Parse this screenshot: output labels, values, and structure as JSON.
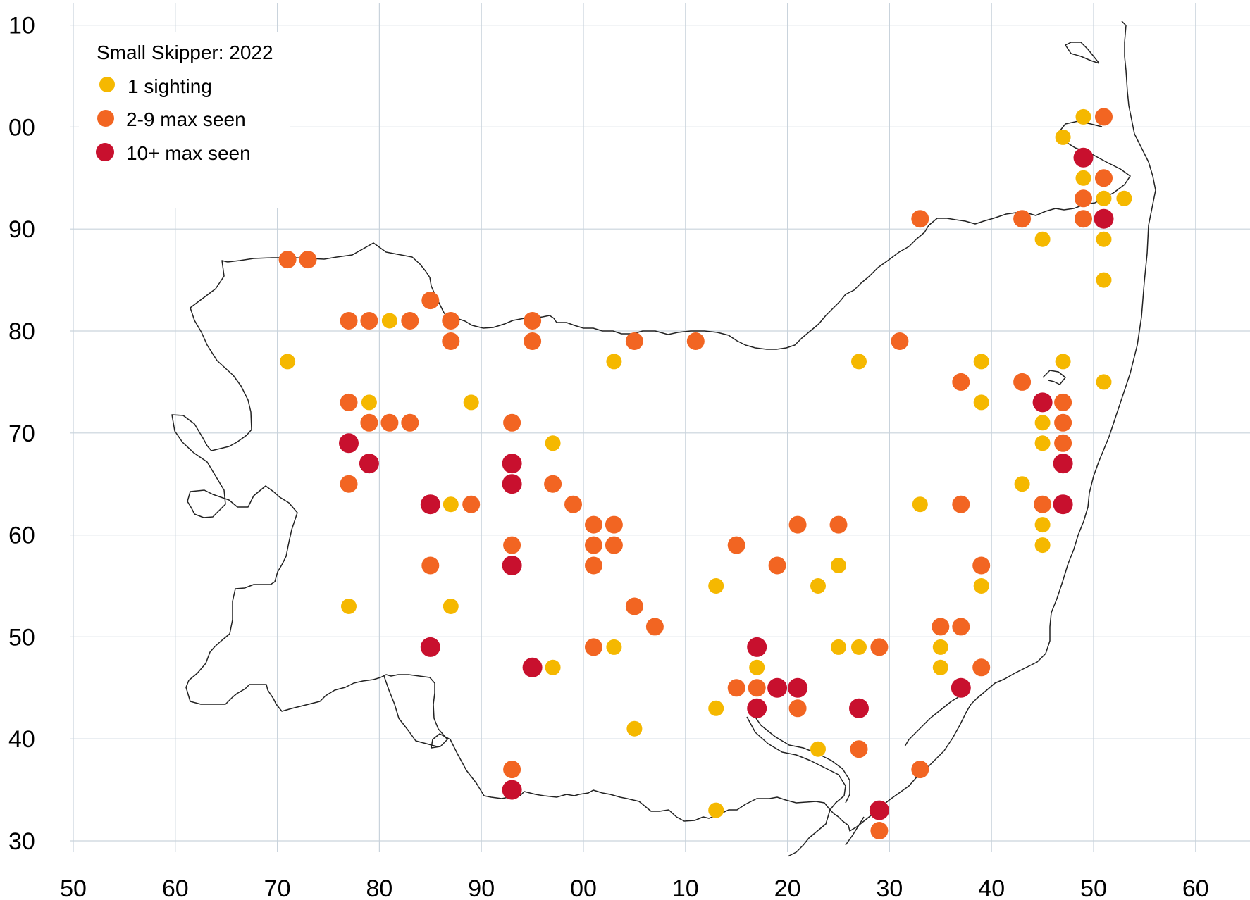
{
  "chart_data": {
    "type": "scatter",
    "title": "Small Skipper:  2022",
    "xlim": [
      45,
      65
    ],
    "ylim": [
      27,
      31
    ],
    "x_ticks": [
      "50",
      "60",
      "70",
      "80",
      "90",
      "00",
      "10",
      "20",
      "30",
      "40",
      "50",
      "60"
    ],
    "y_ticks": [
      "10",
      "00",
      "90",
      "80",
      "70",
      "60",
      "50",
      "40",
      "30"
    ],
    "grid": true,
    "legend_placement": "top-left",
    "series": [
      {
        "name": "1 sighting",
        "color": "#f5b800",
        "points": [
          [
            71,
            77
          ],
          [
            81,
            81
          ],
          [
            79,
            73
          ],
          [
            89,
            73
          ],
          [
            87,
            63
          ],
          [
            77,
            53
          ],
          [
            87,
            53
          ],
          [
            97,
            69
          ],
          [
            97,
            47
          ],
          [
            103,
            77
          ],
          [
            103,
            49
          ],
          [
            105,
            41
          ],
          [
            113,
            55
          ],
          [
            113,
            43
          ],
          [
            113,
            33
          ],
          [
            117,
            47
          ],
          [
            123,
            55
          ],
          [
            123,
            39
          ],
          [
            125,
            57
          ],
          [
            125,
            49
          ],
          [
            127,
            77
          ],
          [
            127,
            49
          ],
          [
            133,
            63
          ],
          [
            135,
            49
          ],
          [
            135,
            47
          ],
          [
            139,
            77
          ],
          [
            139,
            73
          ],
          [
            139,
            55
          ],
          [
            143,
            65
          ],
          [
            145,
            89
          ],
          [
            145,
            71
          ],
          [
            145,
            69
          ],
          [
            145,
            61
          ],
          [
            145,
            59
          ],
          [
            147,
            99
          ],
          [
            147,
            77
          ],
          [
            149,
            101
          ],
          [
            149,
            95
          ],
          [
            151,
            93
          ],
          [
            151,
            89
          ],
          [
            151,
            85
          ],
          [
            151,
            75
          ],
          [
            153,
            93
          ]
        ]
      },
      {
        "name": "2-9 max seen",
        "color": "#f26522",
        "points": [
          [
            71,
            87
          ],
          [
            73,
            87
          ],
          [
            77,
            81
          ],
          [
            79,
            81
          ],
          [
            83,
            81
          ],
          [
            85,
            83
          ],
          [
            87,
            81
          ],
          [
            87,
            79
          ],
          [
            95,
            81
          ],
          [
            95,
            79
          ],
          [
            105,
            79
          ],
          [
            111,
            79
          ],
          [
            131,
            79
          ],
          [
            77,
            73
          ],
          [
            79,
            71
          ],
          [
            81,
            71
          ],
          [
            83,
            71
          ],
          [
            93,
            71
          ],
          [
            77,
            65
          ],
          [
            89,
            63
          ],
          [
            97,
            65
          ],
          [
            99,
            63
          ],
          [
            101,
            61
          ],
          [
            101,
            59
          ],
          [
            101,
            57
          ],
          [
            103,
            61
          ],
          [
            103,
            59
          ],
          [
            93,
            59
          ],
          [
            85,
            57
          ],
          [
            105,
            53
          ],
          [
            107,
            51
          ],
          [
            101,
            49
          ],
          [
            115,
            59
          ],
          [
            119,
            57
          ],
          [
            121,
            61
          ],
          [
            125,
            61
          ],
          [
            129,
            49
          ],
          [
            115,
            45
          ],
          [
            117,
            45
          ],
          [
            121,
            43
          ],
          [
            127,
            39
          ],
          [
            93,
            37
          ],
          [
            129,
            31
          ],
          [
            133,
            37
          ],
          [
            133,
            91
          ],
          [
            135,
            51
          ],
          [
            137,
            75
          ],
          [
            137,
            63
          ],
          [
            137,
            51
          ],
          [
            139,
            57
          ],
          [
            139,
            47
          ],
          [
            143,
            91
          ],
          [
            143,
            75
          ],
          [
            145,
            63
          ],
          [
            147,
            73
          ],
          [
            147,
            71
          ],
          [
            147,
            69
          ],
          [
            149,
            93
          ],
          [
            149,
            91
          ],
          [
            151,
            101
          ],
          [
            151,
            95
          ]
        ]
      },
      {
        "name": "10+ max seen",
        "color": "#c8102e",
        "points": [
          [
            77,
            69
          ],
          [
            79,
            67
          ],
          [
            85,
            63
          ],
          [
            85,
            49
          ],
          [
            93,
            67
          ],
          [
            93,
            65
          ],
          [
            93,
            57
          ],
          [
            93,
            35
          ],
          [
            95,
            47
          ],
          [
            117,
            49
          ],
          [
            117,
            43
          ],
          [
            119,
            45
          ],
          [
            121,
            45
          ],
          [
            127,
            43
          ],
          [
            129,
            33
          ],
          [
            137,
            45
          ],
          [
            145,
            73
          ],
          [
            147,
            67
          ],
          [
            147,
            63
          ],
          [
            149,
            97
          ],
          [
            151,
            91
          ]
        ]
      }
    ]
  }
}
